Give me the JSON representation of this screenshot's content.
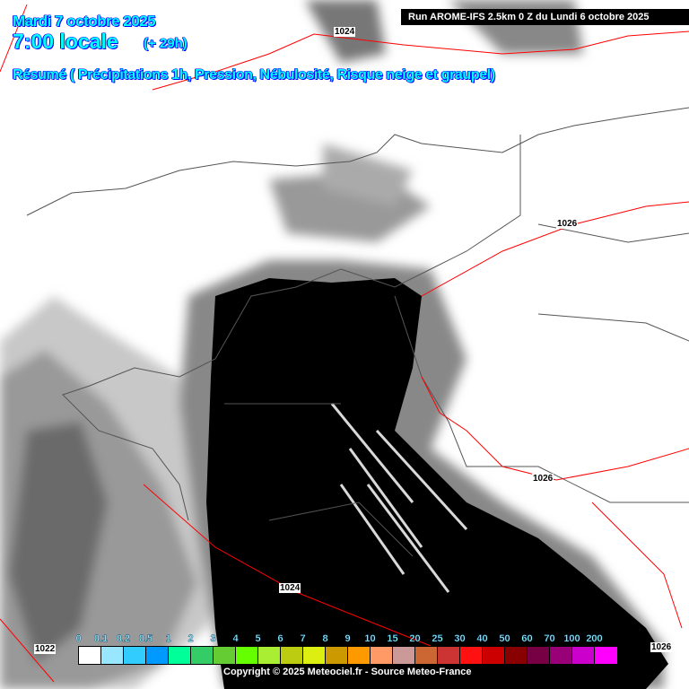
{
  "header": {
    "date": "Mardi 7 octobre 2025",
    "time": "7:00 locale",
    "offset": "(+ 29h)",
    "summary": "Résumé ( Précipitations 1h, Pression, Nébulosité, Risque neige et graupel)",
    "run": "Run AROME-IFS 2.5km 0 Z du Lundi 6 octobre 2025"
  },
  "isobars": [
    "1024",
    "1026",
    "1026",
    "1024",
    "1022",
    "1026"
  ],
  "legend": {
    "unit_labels": [
      "0",
      "0.1",
      "0.2",
      "0.5",
      "1",
      "2",
      "3",
      "4",
      "5",
      "6",
      "7",
      "8",
      "9",
      "10",
      "15",
      "20",
      "25",
      "30",
      "40",
      "50",
      "60",
      "70",
      "100",
      "200"
    ],
    "colors": [
      "#ffffff",
      "#99e6ff",
      "#33ccff",
      "#0099ff",
      "#00ff99",
      "#33cc66",
      "#66cc33",
      "#66ff00",
      "#aaee33",
      "#bbcc11",
      "#ddee11",
      "#cc9900",
      "#ff9900",
      "#ff9966",
      "#cc9999",
      "#cc6633",
      "#cc3333",
      "#ff1111",
      "#cc0000",
      "#880000",
      "#770044",
      "#990077",
      "#cc00cc",
      "#ff00ff"
    ]
  },
  "copyright": "Copyright © 2025 Meteociel.fr - Source Meteo-France",
  "colors": {
    "isobar": "#ff0000",
    "coast": "#555555",
    "title_fill": "#00ffff",
    "title_outline": "#0000ff"
  }
}
